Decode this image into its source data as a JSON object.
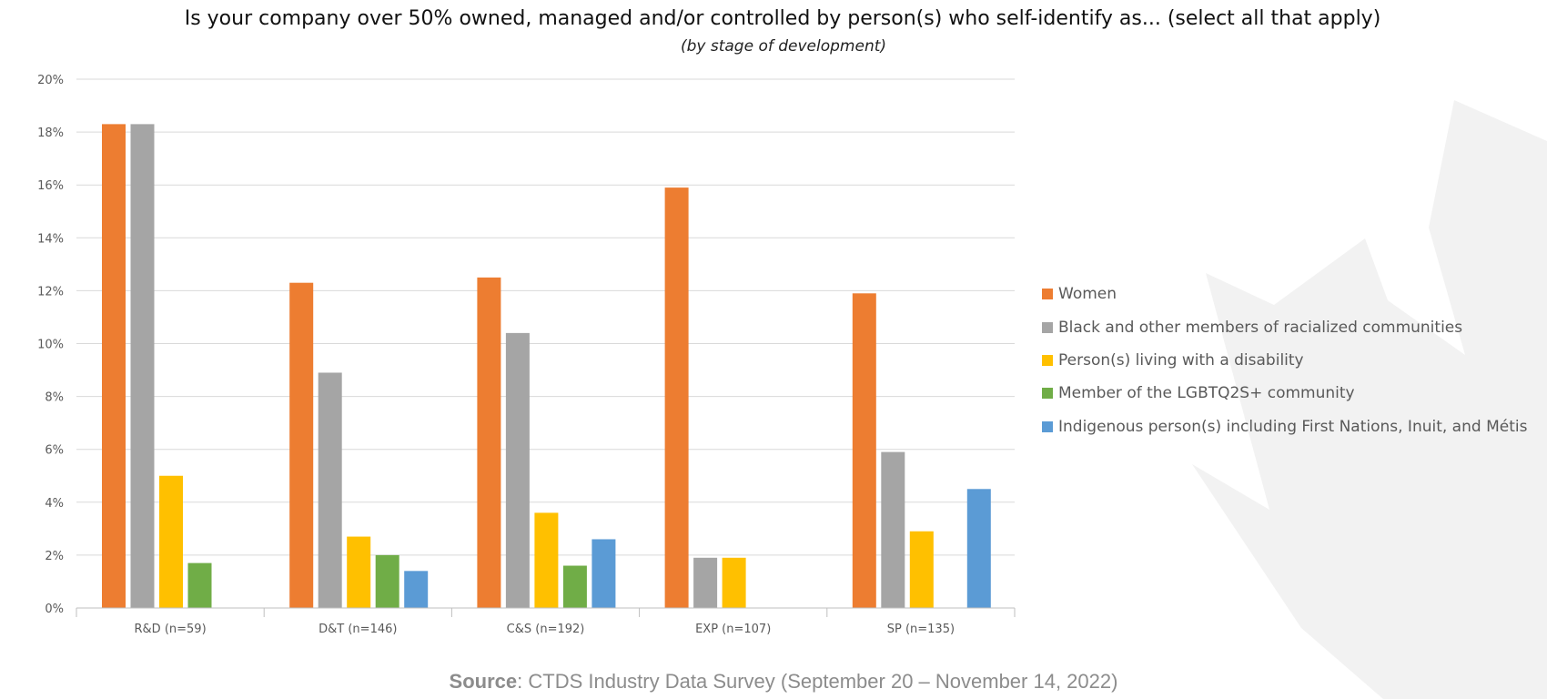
{
  "chart_data": {
    "type": "bar",
    "title": "Is your company over 50% owned, managed and/or controlled by person(s) who self-identify as... (select all that apply)",
    "subtitle": "(by stage of development)",
    "xlabel": "",
    "ylabel": "",
    "ylim": [
      0,
      20
    ],
    "yticks": [
      0,
      2,
      4,
      6,
      8,
      10,
      12,
      14,
      16,
      18,
      20
    ],
    "ytick_labels": [
      "0%",
      "2%",
      "4%",
      "6%",
      "8%",
      "10%",
      "12%",
      "14%",
      "16%",
      "18%",
      "20%"
    ],
    "grid": true,
    "legend_position": "right",
    "categories": [
      "R&D (n=59)",
      "D&T (n=146)",
      "C&S (n=192)",
      "EXP (n=107)",
      "SP (n=135)"
    ],
    "series": [
      {
        "name": "Women",
        "color": "#ED7D31",
        "values": [
          18.3,
          12.3,
          12.5,
          15.9,
          11.9
        ]
      },
      {
        "name": "Black and other members of racialized communities",
        "color": "#A5A5A5",
        "values": [
          18.3,
          8.9,
          10.4,
          1.9,
          5.9
        ]
      },
      {
        "name": "Person(s) living with a disability",
        "color": "#FFC000",
        "values": [
          5.0,
          2.7,
          3.6,
          1.9,
          2.9
        ]
      },
      {
        "name": "Member of the LGBTQ2S+ community",
        "color": "#70AD47",
        "values": [
          1.7,
          2.0,
          1.6,
          0,
          0
        ]
      },
      {
        "name": "Indigenous person(s) including First Nations, Inuit, and Métis",
        "color": "#5B9BD5",
        "values": [
          0,
          1.4,
          2.6,
          0,
          4.5
        ]
      }
    ]
  },
  "source": {
    "label": "Source",
    "text": ": CTDS Industry Data Survey (September 20 – November 14, 2022)"
  },
  "colors": {
    "grid": "#D9D9D9",
    "axis": "#BFBFBF",
    "watermark": "#F2F2F2"
  }
}
